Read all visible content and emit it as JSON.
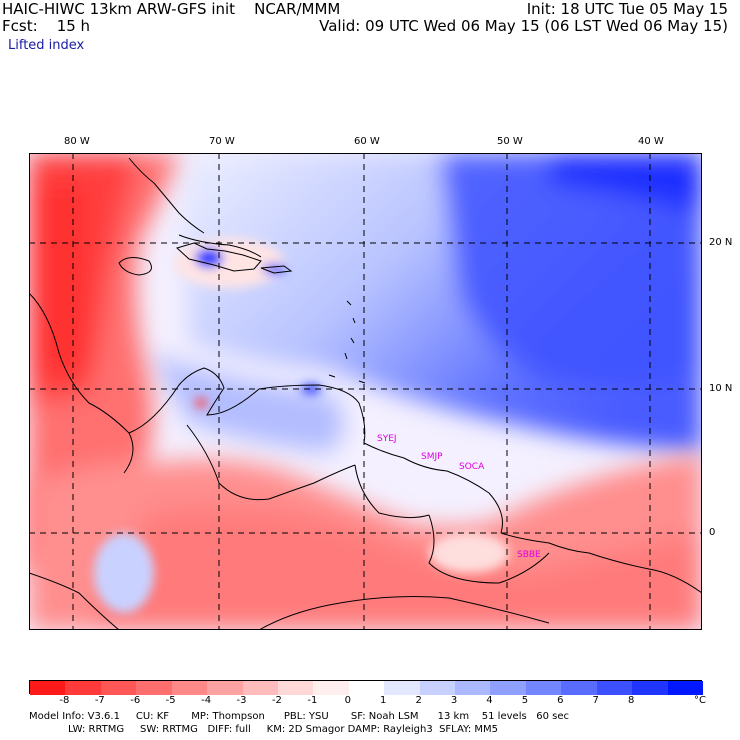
{
  "header": {
    "title": "HAIC-HIWC 13km ARW-GFS init    NCAR/MMM",
    "init": "Init: 18 UTC Tue 05 May 15",
    "fcst": "Fcst:    15 h",
    "valid": "Valid: 09 UTC Wed 06 May 15 (06 LST Wed 06 May 15)",
    "field": "Lifted index"
  },
  "map": {
    "lon_labels": [
      "80 W",
      "70 W",
      "60 W",
      "50 W",
      "40 W"
    ],
    "lat_labels": [
      "20 N",
      "10 N",
      "0"
    ],
    "stations": [
      "SYEJ",
      "SMJP",
      "SOCA",
      "SBBE"
    ],
    "colors": {
      "negative": "#ff0000",
      "neutral": "#ffffff",
      "positive": "#0000ff"
    }
  },
  "colorbar": {
    "tick_labels": [
      "-8",
      "-7",
      "-6",
      "-5",
      "-4",
      "-3",
      "-2",
      "-1",
      "0",
      "1",
      "2",
      "3",
      "4",
      "5",
      "6",
      "7",
      "8"
    ],
    "unit": "°C",
    "colors": [
      "#ff1a1a",
      "#ff3a3a",
      "#ff5656",
      "#ff6e6e",
      "#ff8888",
      "#ffa2a2",
      "#ffbcbc",
      "#ffd8d8",
      "#ffeeee",
      "#ffffff",
      "#e4e8ff",
      "#c8d0ff",
      "#acb8ff",
      "#90a0ff",
      "#7486ff",
      "#586cff",
      "#3c50ff",
      "#2036ff",
      "#0018ff"
    ]
  },
  "footer": {
    "line1": "Model Info: V3.6.1     CU: KF       MP: Thompson      PBL: YSU       SF: Noah LSM      13 km    51 levels   60 sec",
    "line2": "LW: RRTMG     SW: RRTMG   DIFF: full     KM: 2D Smagor DAMP: Rayleigh3  SFLAY: MM5"
  }
}
